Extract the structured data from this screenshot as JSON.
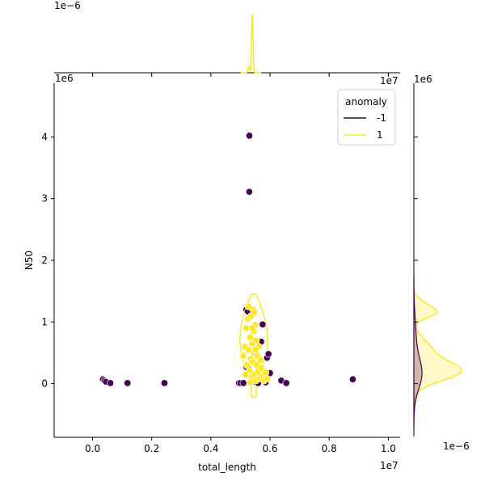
{
  "chart_data": {
    "type": "scatter",
    "title": "",
    "xlabel": "total_length",
    "ylabel": "N50",
    "x_offset_label": "1e7",
    "y_offset_label": "1e6",
    "top_marginal_offset_label": "1e−6",
    "right_marginal_offset_label": "1e−6",
    "xlim": [
      -0.13,
      1.04
    ],
    "ylim": [
      -0.87,
      4.87
    ],
    "x_ticks": [
      0.0,
      0.2,
      0.4,
      0.6,
      0.8,
      1.0
    ],
    "x_tick_labels": [
      "0.0",
      "0.2",
      "0.4",
      "0.6",
      "0.8",
      "1.0"
    ],
    "y_ticks": [
      0,
      1,
      2,
      3,
      4
    ],
    "y_tick_labels": [
      "0",
      "1",
      "2",
      "3",
      "4"
    ],
    "grid": false,
    "legend": {
      "title": "anomaly",
      "placement": "top-right",
      "entries": [
        {
          "label": "-1",
          "color": "#440154"
        },
        {
          "label": "1",
          "color": "#fde725"
        }
      ]
    },
    "series": [
      {
        "name": "-1",
        "color": "#440154",
        "points": [
          [
            0.035,
            0.07
          ],
          [
            0.04,
            0.05
          ],
          [
            0.045,
            0.03
          ],
          [
            0.06,
            0.01
          ],
          [
            0.118,
            0.01
          ],
          [
            0.243,
            0.01
          ],
          [
            0.495,
            0.01
          ],
          [
            0.5,
            0.01
          ],
          [
            0.51,
            0.01
          ],
          [
            0.52,
            1.2
          ],
          [
            0.525,
            0.25
          ],
          [
            0.52,
            0.27
          ],
          [
            0.53,
            4.02
          ],
          [
            0.53,
            3.11
          ],
          [
            0.525,
            1.17
          ],
          [
            0.55,
            0.03
          ],
          [
            0.56,
            0.01
          ],
          [
            0.565,
            0.13
          ],
          [
            0.57,
            0.68
          ],
          [
            0.575,
            0.96
          ],
          [
            0.58,
            0.1
          ],
          [
            0.585,
            0.02
          ],
          [
            0.59,
            0.42
          ],
          [
            0.595,
            0.48
          ],
          [
            0.6,
            0.17
          ],
          [
            0.638,
            0.05
          ],
          [
            0.655,
            0.01
          ],
          [
            0.88,
            0.07
          ]
        ]
      },
      {
        "name": "1",
        "color": "#fde725",
        "points": [
          [
            0.51,
            0.45
          ],
          [
            0.515,
            0.6
          ],
          [
            0.52,
            0.9
          ],
          [
            0.522,
            0.3
          ],
          [
            0.525,
            1.05
          ],
          [
            0.528,
            0.55
          ],
          [
            0.53,
            0.2
          ],
          [
            0.532,
            0.75
          ],
          [
            0.535,
            0.4
          ],
          [
            0.537,
            1.1
          ],
          [
            0.538,
            0.1
          ],
          [
            0.54,
            0.65
          ],
          [
            0.542,
            0.35
          ],
          [
            0.543,
            1.2
          ],
          [
            0.545,
            0.85
          ],
          [
            0.546,
            0.5
          ],
          [
            0.548,
            0.15
          ],
          [
            0.55,
            0.95
          ],
          [
            0.552,
            0.05
          ],
          [
            0.553,
            0.7
          ],
          [
            0.555,
            0.3
          ],
          [
            0.557,
            0.45
          ],
          [
            0.56,
            0.2
          ],
          [
            0.562,
            0.6
          ],
          [
            0.565,
            0.08
          ],
          [
            0.568,
            0.38
          ],
          [
            0.57,
            0.25
          ],
          [
            0.575,
            0.12
          ],
          [
            0.58,
            0.05
          ],
          [
            0.585,
            0.18
          ],
          [
            0.59,
            0.08
          ],
          [
            0.518,
            0.15
          ],
          [
            0.527,
            1.25
          ],
          [
            0.534,
            0.02
          ],
          [
            0.541,
            0.9
          ],
          [
            0.547,
            1.15
          ],
          [
            0.551,
            0.55
          ]
        ]
      }
    ],
    "top_marginal": {
      "type": "kde",
      "series": "1",
      "peak_x": 0.54,
      "x_range": [
        0.51,
        0.56
      ]
    },
    "right_marginal": {
      "type": "kde",
      "series": [
        "-1",
        "1"
      ],
      "peaks_y": [
        0.2,
        1.15
      ]
    }
  }
}
